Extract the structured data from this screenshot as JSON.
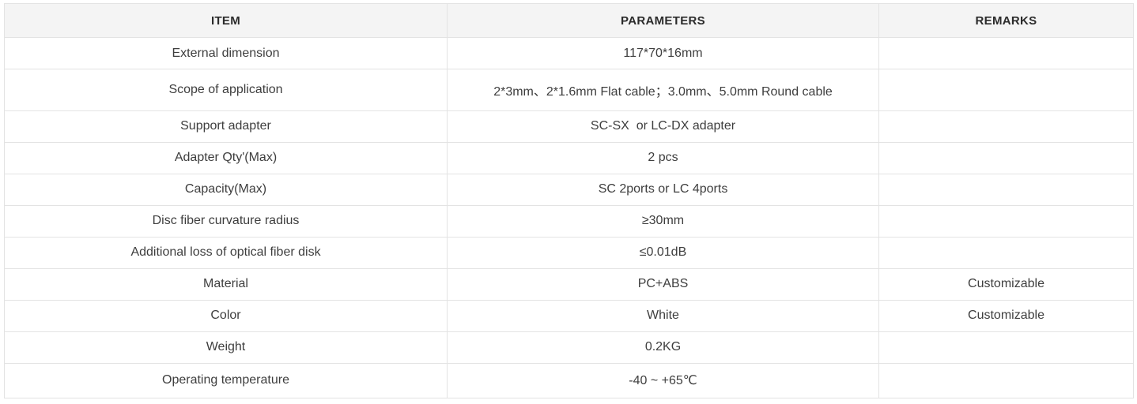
{
  "table": {
    "columns": [
      {
        "key": "item",
        "label": "ITEM"
      },
      {
        "key": "parameters",
        "label": "PARAMETERS"
      },
      {
        "key": "remarks",
        "label": "REMARKS"
      }
    ],
    "rows": [
      {
        "item": "External dimension",
        "parameters": "117*70*16mm",
        "remarks": ""
      },
      {
        "item": "Scope of application",
        "parameters": "2*3mm、2*1.6mm Flat cable；3.0mm、5.0mm Round cable",
        "remarks": ""
      },
      {
        "item": "Support adapter",
        "parameters": "SC-SX  or LC-DX adapter",
        "remarks": ""
      },
      {
        "item": "Adapter Qty'(Max)",
        "parameters": "2 pcs",
        "remarks": ""
      },
      {
        "item": "Capacity(Max)",
        "parameters": "SC 2ports or LC 4ports",
        "remarks": ""
      },
      {
        "item": "Disc fiber curvature radius",
        "parameters": "≥30mm",
        "remarks": ""
      },
      {
        "item": "Additional loss of optical fiber disk",
        "parameters": "≤0.01dB",
        "remarks": ""
      },
      {
        "item": "Material",
        "parameters": "PC+ABS",
        "remarks": "Customizable"
      },
      {
        "item": "Color",
        "parameters": "White",
        "remarks": "Customizable"
      },
      {
        "item": "Weight",
        "parameters": "0.2KG",
        "remarks": ""
      },
      {
        "item": "Operating temperature",
        "parameters": "-40 ~ +65℃",
        "remarks": ""
      }
    ],
    "colors": {
      "header_bg": "#f4f4f4",
      "border": "#e3e3e3",
      "header_text": "#2b2b2b",
      "body_text": "#3e3e3e"
    }
  }
}
